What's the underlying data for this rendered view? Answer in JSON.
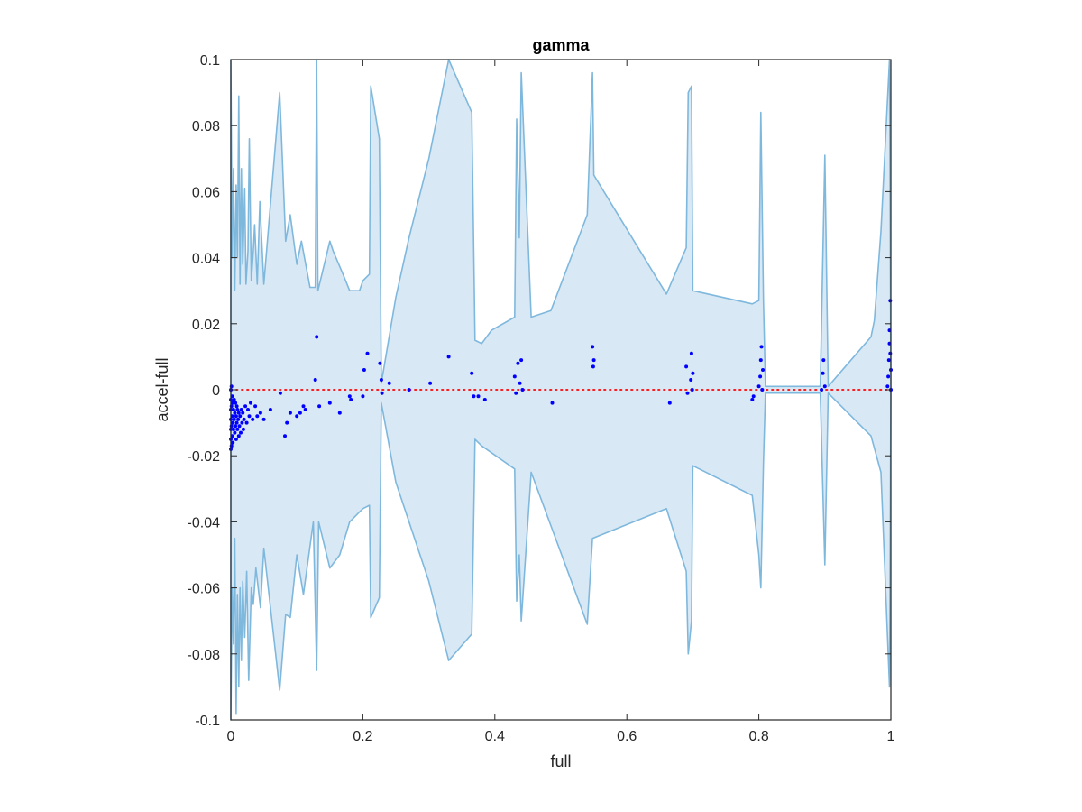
{
  "chart_data": {
    "type": "scatter",
    "title": "gamma",
    "xlabel": "full",
    "ylabel": "accel-full",
    "xlim": [
      0,
      1
    ],
    "ylim": [
      -0.1,
      0.1
    ],
    "xticks": [
      0,
      0.2,
      0.4,
      0.6,
      0.8,
      1
    ],
    "xtick_labels": [
      "0",
      "0.2",
      "0.4",
      "0.6",
      "0.8",
      "1"
    ],
    "yticks": [
      -0.1,
      -0.08,
      -0.06,
      -0.04,
      -0.02,
      0,
      0.02,
      0.04,
      0.06,
      0.08,
      0.1
    ],
    "ytick_labels": [
      "-0.1",
      "-0.08",
      "-0.06",
      "-0.04",
      "-0.02",
      "0",
      "0.02",
      "0.04",
      "0.06",
      "0.08",
      "0.1"
    ],
    "grid": false,
    "reference_line": {
      "y": 0,
      "style": "dotted",
      "color": "#ff0000"
    },
    "band": {
      "color": "#d9e8f5",
      "edge_color": "#7fb8dd",
      "upper": [
        [
          0.0,
          0.1
        ],
        [
          0.002,
          0.04
        ],
        [
          0.004,
          0.067
        ],
        [
          0.006,
          0.03
        ],
        [
          0.008,
          0.062
        ],
        [
          0.01,
          0.04
        ],
        [
          0.012,
          0.089
        ],
        [
          0.014,
          0.032
        ],
        [
          0.016,
          0.067
        ],
        [
          0.018,
          0.038
        ],
        [
          0.021,
          0.061
        ],
        [
          0.023,
          0.032
        ],
        [
          0.026,
          0.042
        ],
        [
          0.028,
          0.076
        ],
        [
          0.031,
          0.033
        ],
        [
          0.034,
          0.042
        ],
        [
          0.036,
          0.05
        ],
        [
          0.04,
          0.032
        ],
        [
          0.044,
          0.057
        ],
        [
          0.05,
          0.032
        ],
        [
          0.074,
          0.09
        ],
        [
          0.083,
          0.045
        ],
        [
          0.09,
          0.053
        ],
        [
          0.1,
          0.038
        ],
        [
          0.107,
          0.045
        ],
        [
          0.12,
          0.031
        ],
        [
          0.128,
          0.031
        ],
        [
          0.13,
          0.1
        ],
        [
          0.132,
          0.03
        ],
        [
          0.15,
          0.045
        ],
        [
          0.155,
          0.042
        ],
        [
          0.17,
          0.035
        ],
        [
          0.18,
          0.03
        ],
        [
          0.195,
          0.03
        ],
        [
          0.2,
          0.033
        ],
        [
          0.21,
          0.035
        ],
        [
          0.212,
          0.092
        ],
        [
          0.225,
          0.076
        ],
        [
          0.228,
          0.002
        ],
        [
          0.25,
          0.028
        ],
        [
          0.27,
          0.046
        ],
        [
          0.3,
          0.07
        ],
        [
          0.33,
          0.1
        ],
        [
          0.365,
          0.084
        ],
        [
          0.37,
          0.015
        ],
        [
          0.38,
          0.014
        ],
        [
          0.395,
          0.018
        ],
        [
          0.43,
          0.022
        ],
        [
          0.433,
          0.082
        ],
        [
          0.437,
          0.046
        ],
        [
          0.44,
          0.096
        ],
        [
          0.455,
          0.022
        ],
        [
          0.485,
          0.024
        ],
        [
          0.54,
          0.053
        ],
        [
          0.548,
          0.096
        ],
        [
          0.55,
          0.065
        ],
        [
          0.66,
          0.029
        ],
        [
          0.69,
          0.043
        ],
        [
          0.693,
          0.09
        ],
        [
          0.698,
          0.092
        ],
        [
          0.7,
          0.03
        ],
        [
          0.79,
          0.026
        ],
        [
          0.8,
          0.027
        ],
        [
          0.803,
          0.084
        ],
        [
          0.807,
          0.027
        ],
        [
          0.81,
          0.001
        ],
        [
          0.893,
          0.001
        ],
        [
          0.9,
          0.071
        ],
        [
          0.905,
          0.001
        ],
        [
          0.97,
          0.016
        ],
        [
          0.975,
          0.021
        ],
        [
          0.985,
          0.048
        ],
        [
          0.998,
          0.1
        ],
        [
          1.0,
          0.001
        ]
      ],
      "lower": [
        [
          0.0,
          -0.1
        ],
        [
          0.002,
          -0.06
        ],
        [
          0.004,
          -0.077
        ],
        [
          0.006,
          -0.045
        ],
        [
          0.008,
          -0.098
        ],
        [
          0.01,
          -0.062
        ],
        [
          0.012,
          -0.09
        ],
        [
          0.014,
          -0.06
        ],
        [
          0.016,
          -0.082
        ],
        [
          0.018,
          -0.058
        ],
        [
          0.021,
          -0.075
        ],
        [
          0.024,
          -0.055
        ],
        [
          0.027,
          -0.088
        ],
        [
          0.031,
          -0.06
        ],
        [
          0.034,
          -0.065
        ],
        [
          0.038,
          -0.054
        ],
        [
          0.045,
          -0.066
        ],
        [
          0.05,
          -0.048
        ],
        [
          0.074,
          -0.091
        ],
        [
          0.083,
          -0.068
        ],
        [
          0.09,
          -0.069
        ],
        [
          0.1,
          -0.05
        ],
        [
          0.11,
          -0.062
        ],
        [
          0.125,
          -0.04
        ],
        [
          0.13,
          -0.085
        ],
        [
          0.133,
          -0.04
        ],
        [
          0.15,
          -0.054
        ],
        [
          0.165,
          -0.05
        ],
        [
          0.18,
          -0.04
        ],
        [
          0.195,
          -0.037
        ],
        [
          0.2,
          -0.036
        ],
        [
          0.21,
          -0.035
        ],
        [
          0.212,
          -0.069
        ],
        [
          0.225,
          -0.063
        ],
        [
          0.228,
          -0.004
        ],
        [
          0.25,
          -0.028
        ],
        [
          0.3,
          -0.058
        ],
        [
          0.33,
          -0.082
        ],
        [
          0.365,
          -0.074
        ],
        [
          0.37,
          -0.015
        ],
        [
          0.38,
          -0.017
        ],
        [
          0.43,
          -0.024
        ],
        [
          0.433,
          -0.064
        ],
        [
          0.437,
          -0.05
        ],
        [
          0.44,
          -0.07
        ],
        [
          0.455,
          -0.025
        ],
        [
          0.54,
          -0.071
        ],
        [
          0.548,
          -0.045
        ],
        [
          0.66,
          -0.036
        ],
        [
          0.69,
          -0.055
        ],
        [
          0.693,
          -0.08
        ],
        [
          0.698,
          -0.07
        ],
        [
          0.7,
          -0.023
        ],
        [
          0.79,
          -0.032
        ],
        [
          0.8,
          -0.05
        ],
        [
          0.803,
          -0.06
        ],
        [
          0.807,
          -0.022
        ],
        [
          0.81,
          -0.001
        ],
        [
          0.893,
          -0.001
        ],
        [
          0.9,
          -0.053
        ],
        [
          0.905,
          -0.001
        ],
        [
          0.97,
          -0.014
        ],
        [
          0.985,
          -0.025
        ],
        [
          0.998,
          -0.09
        ],
        [
          1.0,
          -0.001
        ]
      ]
    },
    "series": [
      {
        "color": "#0000ff",
        "points": [
          [
            0.0,
            -0.018
          ],
          [
            0.0,
            -0.015
          ],
          [
            0.0,
            -0.012
          ],
          [
            0.0,
            -0.009
          ],
          [
            0.0,
            -0.006
          ],
          [
            0.0,
            -0.003
          ],
          [
            0.0,
            0.0
          ],
          [
            0.001,
            -0.017
          ],
          [
            0.001,
            -0.011
          ],
          [
            0.001,
            -0.005
          ],
          [
            0.001,
            0.001
          ],
          [
            0.002,
            -0.014
          ],
          [
            0.002,
            -0.008
          ],
          [
            0.002,
            -0.002
          ],
          [
            0.003,
            -0.016
          ],
          [
            0.003,
            -0.01
          ],
          [
            0.003,
            -0.004
          ],
          [
            0.004,
            -0.012
          ],
          [
            0.004,
            -0.006
          ],
          [
            0.005,
            -0.009
          ],
          [
            0.005,
            -0.003
          ],
          [
            0.006,
            -0.013
          ],
          [
            0.006,
            -0.007
          ],
          [
            0.007,
            -0.011
          ],
          [
            0.007,
            -0.004
          ],
          [
            0.008,
            -0.015
          ],
          [
            0.008,
            -0.008
          ],
          [
            0.009,
            -0.01
          ],
          [
            0.009,
            -0.005
          ],
          [
            0.01,
            -0.012
          ],
          [
            0.01,
            -0.006
          ],
          [
            0.011,
            -0.009
          ],
          [
            0.012,
            -0.014
          ],
          [
            0.012,
            -0.007
          ],
          [
            0.013,
            -0.011
          ],
          [
            0.014,
            -0.008
          ],
          [
            0.015,
            -0.013
          ],
          [
            0.016,
            -0.006
          ],
          [
            0.017,
            -0.01
          ],
          [
            0.018,
            -0.007
          ],
          [
            0.019,
            -0.012
          ],
          [
            0.02,
            -0.009
          ],
          [
            0.022,
            -0.005
          ],
          [
            0.024,
            -0.01
          ],
          [
            0.026,
            -0.006
          ],
          [
            0.028,
            -0.008
          ],
          [
            0.03,
            -0.004
          ],
          [
            0.033,
            -0.009
          ],
          [
            0.037,
            -0.005
          ],
          [
            0.04,
            -0.008
          ],
          [
            0.045,
            -0.007
          ],
          [
            0.05,
            -0.009
          ],
          [
            0.06,
            -0.006
          ],
          [
            0.075,
            -0.001
          ],
          [
            0.082,
            -0.014
          ],
          [
            0.085,
            -0.01
          ],
          [
            0.09,
            -0.007
          ],
          [
            0.1,
            -0.008
          ],
          [
            0.105,
            -0.007
          ],
          [
            0.11,
            -0.005
          ],
          [
            0.113,
            -0.006
          ],
          [
            0.128,
            0.003
          ],
          [
            0.13,
            0.016
          ],
          [
            0.134,
            -0.005
          ],
          [
            0.15,
            -0.004
          ],
          [
            0.165,
            -0.007
          ],
          [
            0.18,
            -0.002
          ],
          [
            0.182,
            -0.003
          ],
          [
            0.2,
            -0.002
          ],
          [
            0.202,
            0.006
          ],
          [
            0.207,
            0.011
          ],
          [
            0.226,
            0.008
          ],
          [
            0.228,
            0.003
          ],
          [
            0.229,
            -0.001
          ],
          [
            0.24,
            0.002
          ],
          [
            0.27,
            0.0
          ],
          [
            0.302,
            0.002
          ],
          [
            0.33,
            0.01
          ],
          [
            0.365,
            0.005
          ],
          [
            0.368,
            -0.002
          ],
          [
            0.375,
            -0.002
          ],
          [
            0.385,
            -0.003
          ],
          [
            0.43,
            0.004
          ],
          [
            0.432,
            -0.001
          ],
          [
            0.435,
            0.008
          ],
          [
            0.438,
            0.002
          ],
          [
            0.44,
            0.009
          ],
          [
            0.442,
            0.0
          ],
          [
            0.487,
            -0.004
          ],
          [
            0.548,
            0.013
          ],
          [
            0.549,
            0.007
          ],
          [
            0.55,
            0.009
          ],
          [
            0.665,
            -0.004
          ],
          [
            0.69,
            0.007
          ],
          [
            0.692,
            -0.001
          ],
          [
            0.697,
            0.003
          ],
          [
            0.698,
            0.011
          ],
          [
            0.699,
            0.0
          ],
          [
            0.7,
            0.005
          ],
          [
            0.79,
            -0.003
          ],
          [
            0.792,
            -0.002
          ],
          [
            0.8,
            0.001
          ],
          [
            0.802,
            0.004
          ],
          [
            0.803,
            0.009
          ],
          [
            0.804,
            0.013
          ],
          [
            0.805,
            0.0
          ],
          [
            0.806,
            0.006
          ],
          [
            0.895,
            0.0
          ],
          [
            0.897,
            0.005
          ],
          [
            0.898,
            0.009
          ],
          [
            0.9,
            0.001
          ],
          [
            0.995,
            0.001
          ],
          [
            0.996,
            0.004
          ],
          [
            0.997,
            0.009
          ],
          [
            0.998,
            0.014
          ],
          [
            0.998,
            0.018
          ],
          [
            0.999,
            0.027
          ],
          [
            0.999,
            0.011
          ],
          [
            1.0,
            0.006
          ],
          [
            1.0,
            0.0
          ]
        ]
      }
    ]
  }
}
